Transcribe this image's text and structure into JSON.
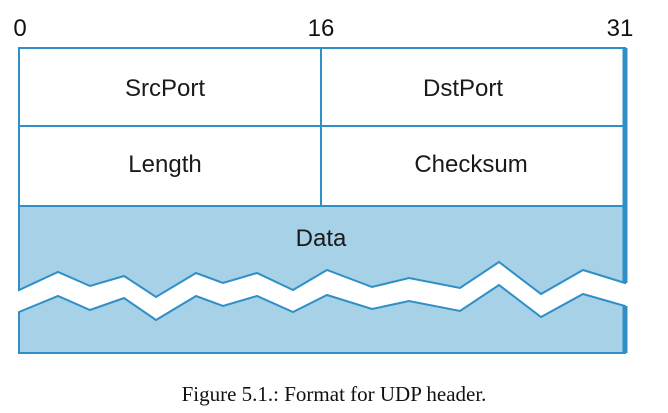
{
  "bit_positions": {
    "start": "0",
    "middle": "16",
    "end": "31"
  },
  "fields": {
    "src_port": "SrcPort",
    "dst_port": "DstPort",
    "length": "Length",
    "checksum": "Checksum",
    "data": "Data"
  },
  "caption": "Figure 5.1.: Format for UDP header.",
  "colors": {
    "line": "#2f8fc6",
    "data_fill": "#a6d1e6",
    "header_fill": "#ffffff"
  }
}
